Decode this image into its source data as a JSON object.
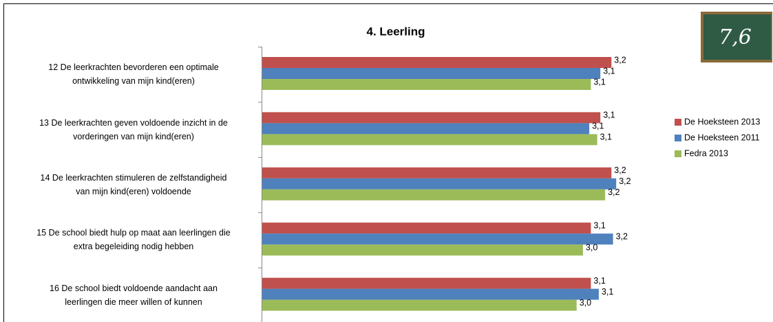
{
  "chart_data": {
    "type": "hbar",
    "title": "4. Leerling",
    "annotation": "7,6",
    "categories": [
      "12 De leerkrachten bevorderen een optimale\nontwikkeling van mijn kind(eren)",
      "13 De leerkrachten geven voldoende inzicht in de\nvorderingen van mijn kind(eren)",
      "14 De leerkrachten stimuleren de zelfstandigheid\nvan mijn kind(eren) voldoende",
      "15 De school biedt hulp op maat aan leerlingen die\nextra  begeleiding nodig hebben",
      "16 De school biedt voldoende aandacht aan\nleerlingen die meer willen of kunnen"
    ],
    "series": [
      {
        "name": "De Hoeksteen 2013",
        "color": "#c0504d",
        "values": [
          3.21,
          3.14,
          3.21,
          3.08,
          3.08
        ],
        "value_labels": [
          "3,2",
          "3,1",
          "3,2",
          "3,1",
          "3,1"
        ]
      },
      {
        "name": "De Hoeksteen 2011",
        "color": "#4f81bd",
        "values": [
          3.14,
          3.07,
          3.24,
          3.22,
          3.13
        ],
        "value_labels": [
          "3,1",
          "3,1",
          "3,2",
          "3,2",
          "3,1"
        ]
      },
      {
        "name": "Fedra 2013",
        "color": "#9bbb59",
        "values": [
          3.08,
          3.12,
          3.17,
          3.03,
          2.99
        ],
        "value_labels": [
          "3,1",
          "3,1",
          "3,2",
          "3,0",
          "3,0"
        ]
      }
    ],
    "xlim": [
      1,
      4
    ]
  }
}
